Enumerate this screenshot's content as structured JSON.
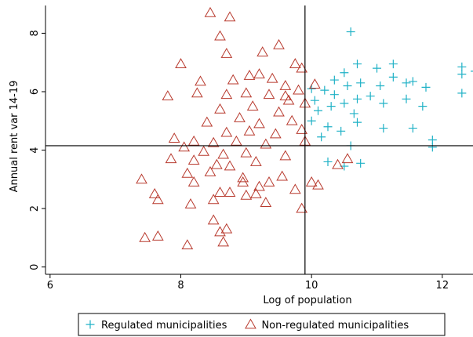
{
  "chart_data": {
    "type": "scatter",
    "x_label": "Log of population",
    "y_label": "Annual rent var 14-19",
    "xlim": [
      5.93,
      12.47
    ],
    "ylim": [
      -0.25,
      8.95
    ],
    "xticks": [
      6,
      8,
      10,
      12
    ],
    "yticks": [
      0,
      2,
      4,
      6,
      8
    ],
    "reference_lines": {
      "x": 9.9,
      "y": 4.15
    },
    "legend_position": "bottom",
    "series": [
      {
        "name": "Regulated municipalities",
        "color": "#1fb1c6",
        "marker": "plus",
        "x": [
          10.6,
          10.7,
          11.25,
          11.0,
          10.5,
          10.35,
          10.55,
          10.75,
          11.05,
          11.25,
          11.45,
          11.55,
          11.75,
          12.3,
          12.3,
          12.5,
          12.3,
          10.0,
          10.2,
          10.35,
          10.05,
          10.3,
          10.5,
          10.7,
          10.9,
          11.1,
          11.45,
          11.7,
          10.65,
          10.0,
          10.25,
          10.45,
          10.7,
          11.1,
          11.55,
          11.85,
          11.85,
          10.25,
          10.75,
          10.5,
          10.6,
          10.1,
          10.15
        ],
        "values": [
          8.05,
          6.95,
          6.95,
          6.8,
          6.65,
          6.4,
          6.2,
          6.3,
          6.2,
          6.5,
          6.3,
          6.35,
          6.15,
          6.85,
          6.6,
          6.7,
          5.95,
          6.1,
          6.05,
          5.9,
          5.7,
          5.5,
          5.6,
          5.75,
          5.85,
          5.6,
          5.75,
          5.5,
          5.25,
          5.0,
          4.8,
          4.65,
          4.95,
          4.75,
          4.75,
          4.35,
          4.1,
          3.6,
          3.55,
          3.45,
          4.15,
          5.35,
          4.45
        ]
      },
      {
        "name": "Non-regulated municipalities",
        "color": "#b83a2e",
        "marker": "triangle",
        "x": [
          8.45,
          8.75,
          8.6,
          9.5,
          9.25,
          8.7,
          8.0,
          9.85,
          9.75,
          9.05,
          8.3,
          8.8,
          9.2,
          9.4,
          9.6,
          7.8,
          8.25,
          8.7,
          9.0,
          9.35,
          9.65,
          9.8,
          8.6,
          9.1,
          9.5,
          8.9,
          8.4,
          9.2,
          9.7,
          9.85,
          8.7,
          9.05,
          9.45,
          8.2,
          8.5,
          8.85,
          9.3,
          9.9,
          7.9,
          8.05,
          8.35,
          8.65,
          9.0,
          9.6,
          7.85,
          8.2,
          8.55,
          8.75,
          9.15,
          8.1,
          8.45,
          8.95,
          9.35,
          9.55,
          10.1,
          10.4,
          10.55,
          7.4,
          7.6,
          8.2,
          8.6,
          9.0,
          9.3,
          9.75,
          9.85,
          7.65,
          8.15,
          8.5,
          8.75,
          9.2,
          7.45,
          7.65,
          8.1,
          8.5,
          8.6,
          8.7,
          8.65,
          9.15,
          8.95,
          9.6,
          9.9,
          10.05,
          10.0
        ],
        "values": [
          8.7,
          8.55,
          7.9,
          7.6,
          7.35,
          7.3,
          6.95,
          6.8,
          6.95,
          6.55,
          6.35,
          6.4,
          6.6,
          6.45,
          6.2,
          5.85,
          5.95,
          5.9,
          5.95,
          5.9,
          5.7,
          6.05,
          5.4,
          5.5,
          5.3,
          5.1,
          4.95,
          4.9,
          5.0,
          4.7,
          4.6,
          4.65,
          4.55,
          4.3,
          4.25,
          4.3,
          4.2,
          4.3,
          4.4,
          4.1,
          3.95,
          3.85,
          3.9,
          3.8,
          3.7,
          3.65,
          3.5,
          3.45,
          3.6,
          3.2,
          3.25,
          3.05,
          2.9,
          3.1,
          2.8,
          3.5,
          3.7,
          3.0,
          2.5,
          2.9,
          2.55,
          2.45,
          2.2,
          2.65,
          2.0,
          2.3,
          2.15,
          2.3,
          2.55,
          2.75,
          1.0,
          1.05,
          0.75,
          1.6,
          1.2,
          1.3,
          0.85,
          2.5,
          2.9,
          5.85,
          5.6,
          6.25,
          2.9
        ]
      }
    ]
  }
}
